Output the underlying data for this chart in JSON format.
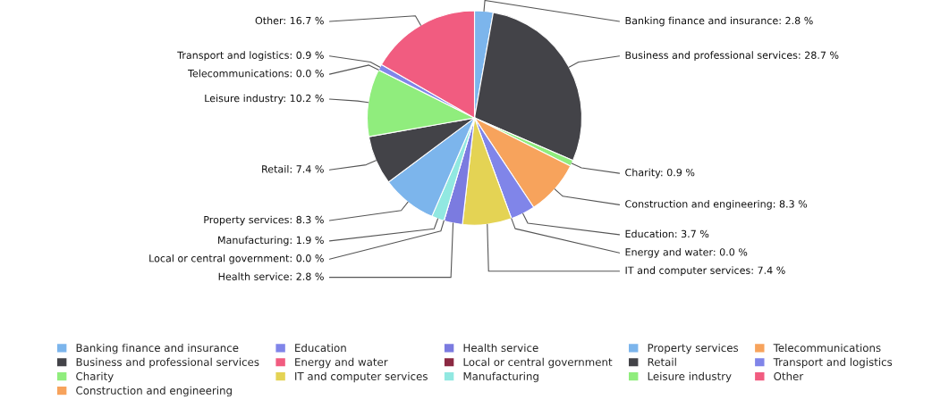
{
  "chart_data": {
    "type": "pie",
    "categories": [
      "Banking finance and insurance",
      "Business and professional services",
      "Charity",
      "Construction and engineering",
      "Education",
      "Energy and water",
      "IT and computer services",
      "Health service",
      "Local or central government",
      "Manufacturing",
      "Property services",
      "Retail",
      "Leisure industry",
      "Telecommunications",
      "Transport and logistics",
      "Other"
    ],
    "values": [
      2.8,
      28.7,
      0.9,
      8.3,
      3.7,
      0.0,
      7.4,
      2.8,
      0.0,
      1.9,
      8.3,
      7.4,
      10.2,
      0.0,
      0.9,
      16.7
    ],
    "value_labels": [
      "Banking finance and insurance: 2.8 %",
      "Business and professional services: 28.7 %",
      "Charity: 0.9 %",
      "Construction and engineering: 8.3 %",
      "Education: 3.7 %",
      "Energy and water: 0.0 %",
      "IT and computer services: 7.4 %",
      "Health service: 2.8 %",
      "Local or central government: 0.0 %",
      "Manufacturing: 1.9 %",
      "Property services: 8.3 %",
      "Retail: 7.4 %",
      "Leisure industry: 10.2 %",
      "Telecommunications: 0.0 %",
      "Transport and logistics: 0.9 %",
      "Other: 16.7 %"
    ],
    "colors": [
      "#7cb5ec",
      "#434348",
      "#90ed7d",
      "#f7a35c",
      "#8085e9",
      "#f15c80",
      "#e4d354",
      "#7b7be0",
      "#8b2942",
      "#91e8e1",
      "#7cb5ec",
      "#434348",
      "#90ed7d",
      "#f7a35c",
      "#8085e9",
      "#f15c80"
    ],
    "legend": "bottom"
  }
}
